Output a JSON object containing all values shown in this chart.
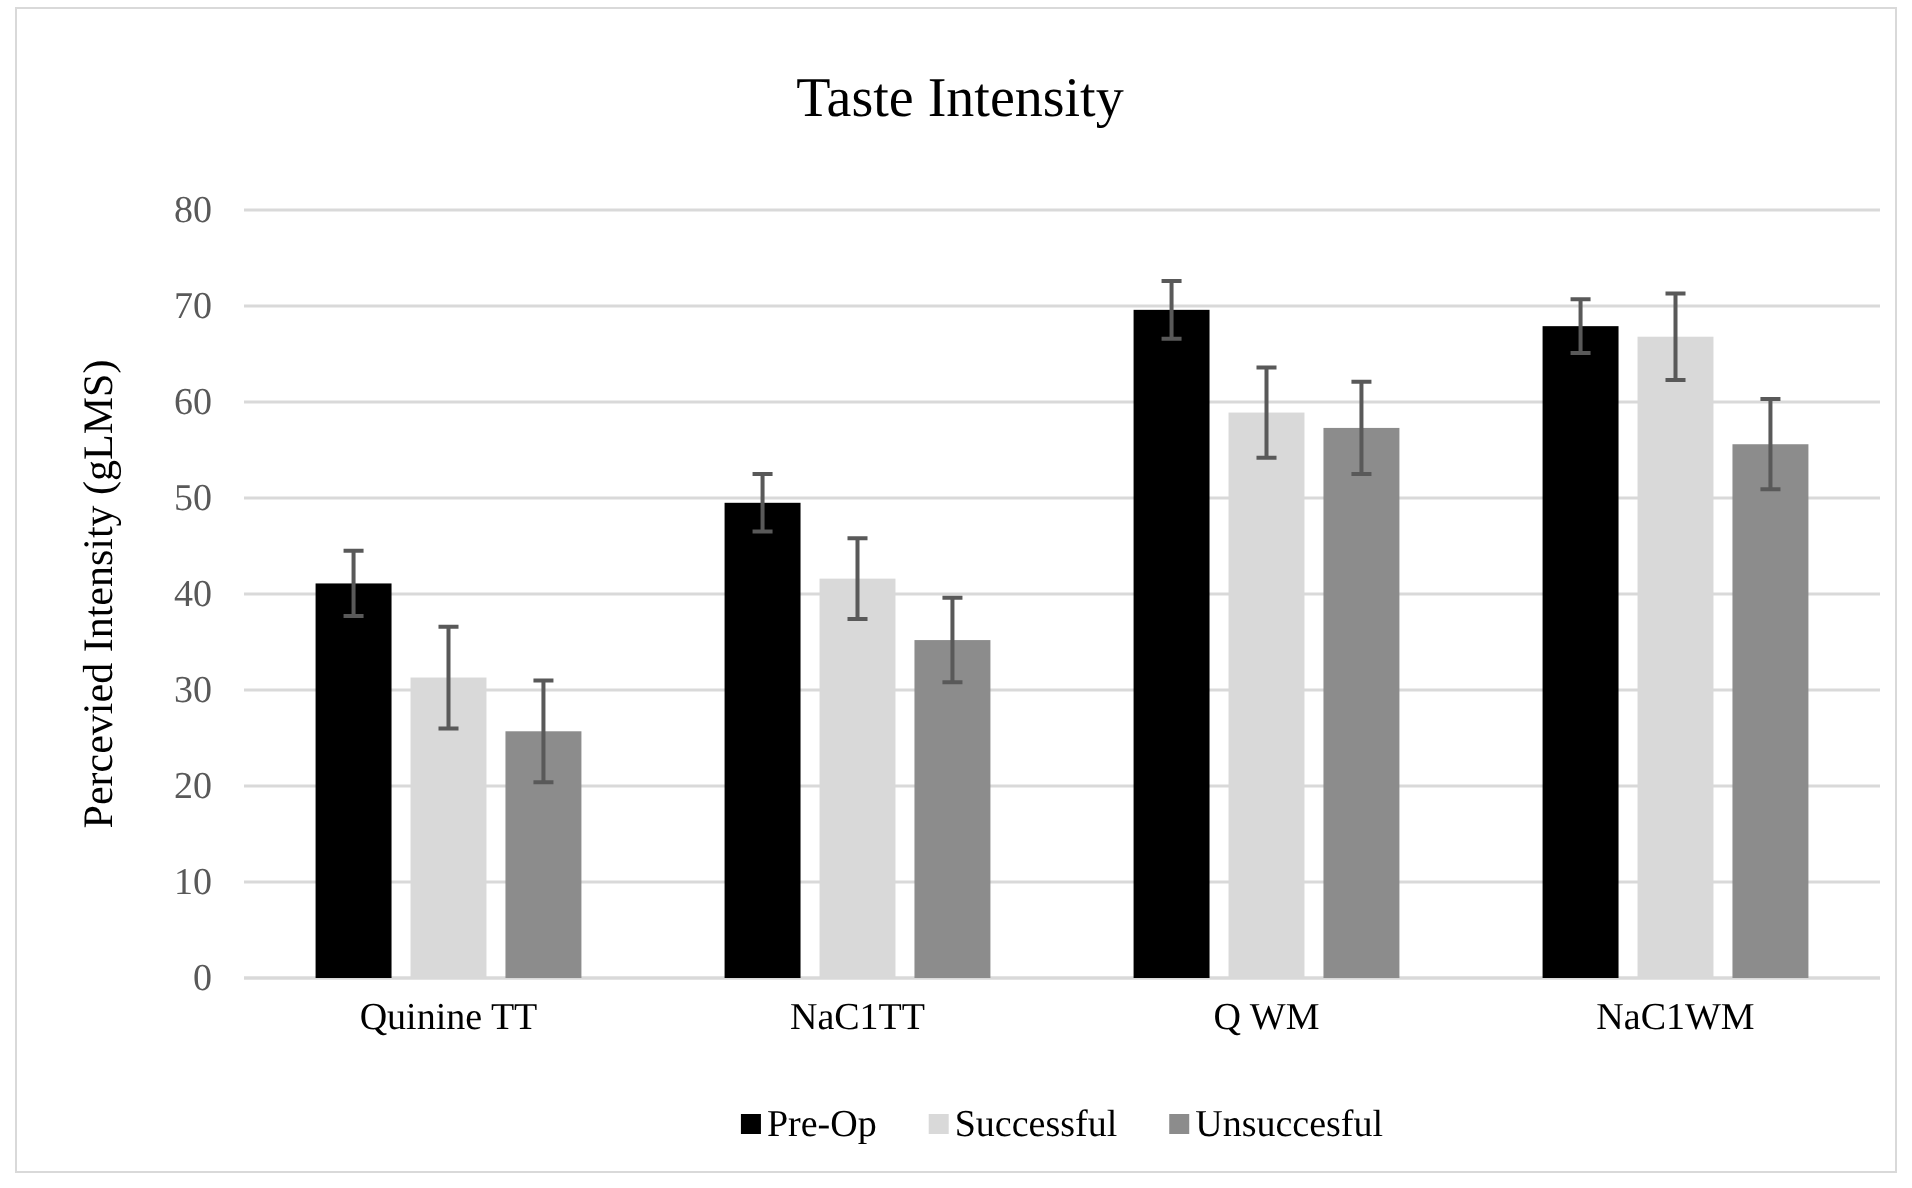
{
  "chart_data": {
    "type": "bar",
    "title": "Taste Intensity",
    "ylabel": "Percevied Intensity (gLMS)",
    "categories": [
      "Quinine TT",
      "NaC1TT",
      "Q WM",
      "NaC1WM"
    ],
    "series": [
      {
        "name": "Pre-Op",
        "color": "#000000",
        "values": [
          41.1,
          49.5,
          69.6,
          67.9
        ],
        "errors": [
          3.4,
          3.0,
          3.0,
          2.8
        ]
      },
      {
        "name": "Successful",
        "color": "#d9d9d9",
        "values": [
          31.3,
          41.6,
          58.9,
          66.8
        ],
        "errors": [
          5.3,
          4.2,
          4.7,
          4.5
        ]
      },
      {
        "name": "Unsuccesful",
        "color": "#8c8c8c",
        "values": [
          25.7,
          35.2,
          57.3,
          55.6
        ],
        "errors": [
          5.3,
          4.4,
          4.8,
          4.7
        ]
      }
    ],
    "ylim": [
      0,
      80
    ],
    "yticks": [
      0,
      10,
      20,
      30,
      40,
      50,
      60,
      70,
      80
    ],
    "grid": "y",
    "legend": "bottom"
  }
}
